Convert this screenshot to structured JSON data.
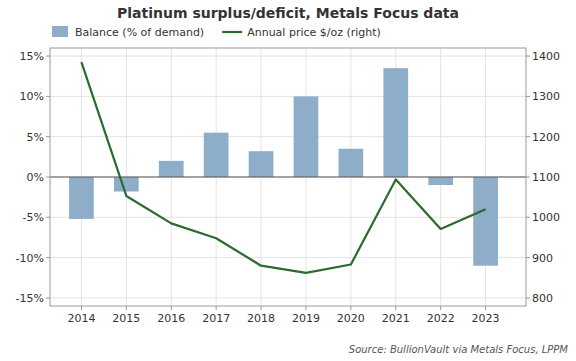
{
  "chart_data": {
    "type": "bar",
    "title": "Platinum surplus/deficit,  Metals Focus data",
    "x": [
      2014,
      2015,
      2016,
      2017,
      2018,
      2019,
      2020,
      2021,
      2022,
      2023
    ],
    "xlim": [
      2013.3,
      2023.9
    ],
    "xticks": [
      2014,
      2015,
      2016,
      2017,
      2018,
      2019,
      2020,
      2021,
      2022,
      2023
    ],
    "series": [
      {
        "name": "Balance (% of demand)",
        "type": "bar",
        "color": "#8EADC8",
        "values": [
          -5.2,
          -1.8,
          2.0,
          5.5,
          3.2,
          10.0,
          3.5,
          13.5,
          -1.0,
          -11.0
        ]
      },
      {
        "name": "Annual price $/oz (right)",
        "type": "line",
        "color": "#2D6A2D",
        "axis": "y2",
        "values": [
          1385,
          1053,
          985,
          948,
          880,
          862,
          883,
          1094,
          971,
          1020
        ]
      }
    ],
    "ylim": [
      -16,
      16
    ],
    "yticks": [
      {
        "value": -15,
        "label": "-15%"
      },
      {
        "value": -10,
        "label": "-10%"
      },
      {
        "value": -5,
        "label": "-5%"
      },
      {
        "value": 0,
        "label": "0%"
      },
      {
        "value": 5,
        "label": "5%"
      },
      {
        "value": 10,
        "label": "10%"
      },
      {
        "value": 15,
        "label": "15%"
      }
    ],
    "y2lim": [
      780,
      1420
    ],
    "y2ticks": [
      800,
      900,
      1000,
      1100,
      1200,
      1300,
      1400
    ],
    "grid": true,
    "legend": "upper left",
    "annotations": [
      "Source:  BullionVault via  Metals Focus,  LPPM"
    ]
  }
}
